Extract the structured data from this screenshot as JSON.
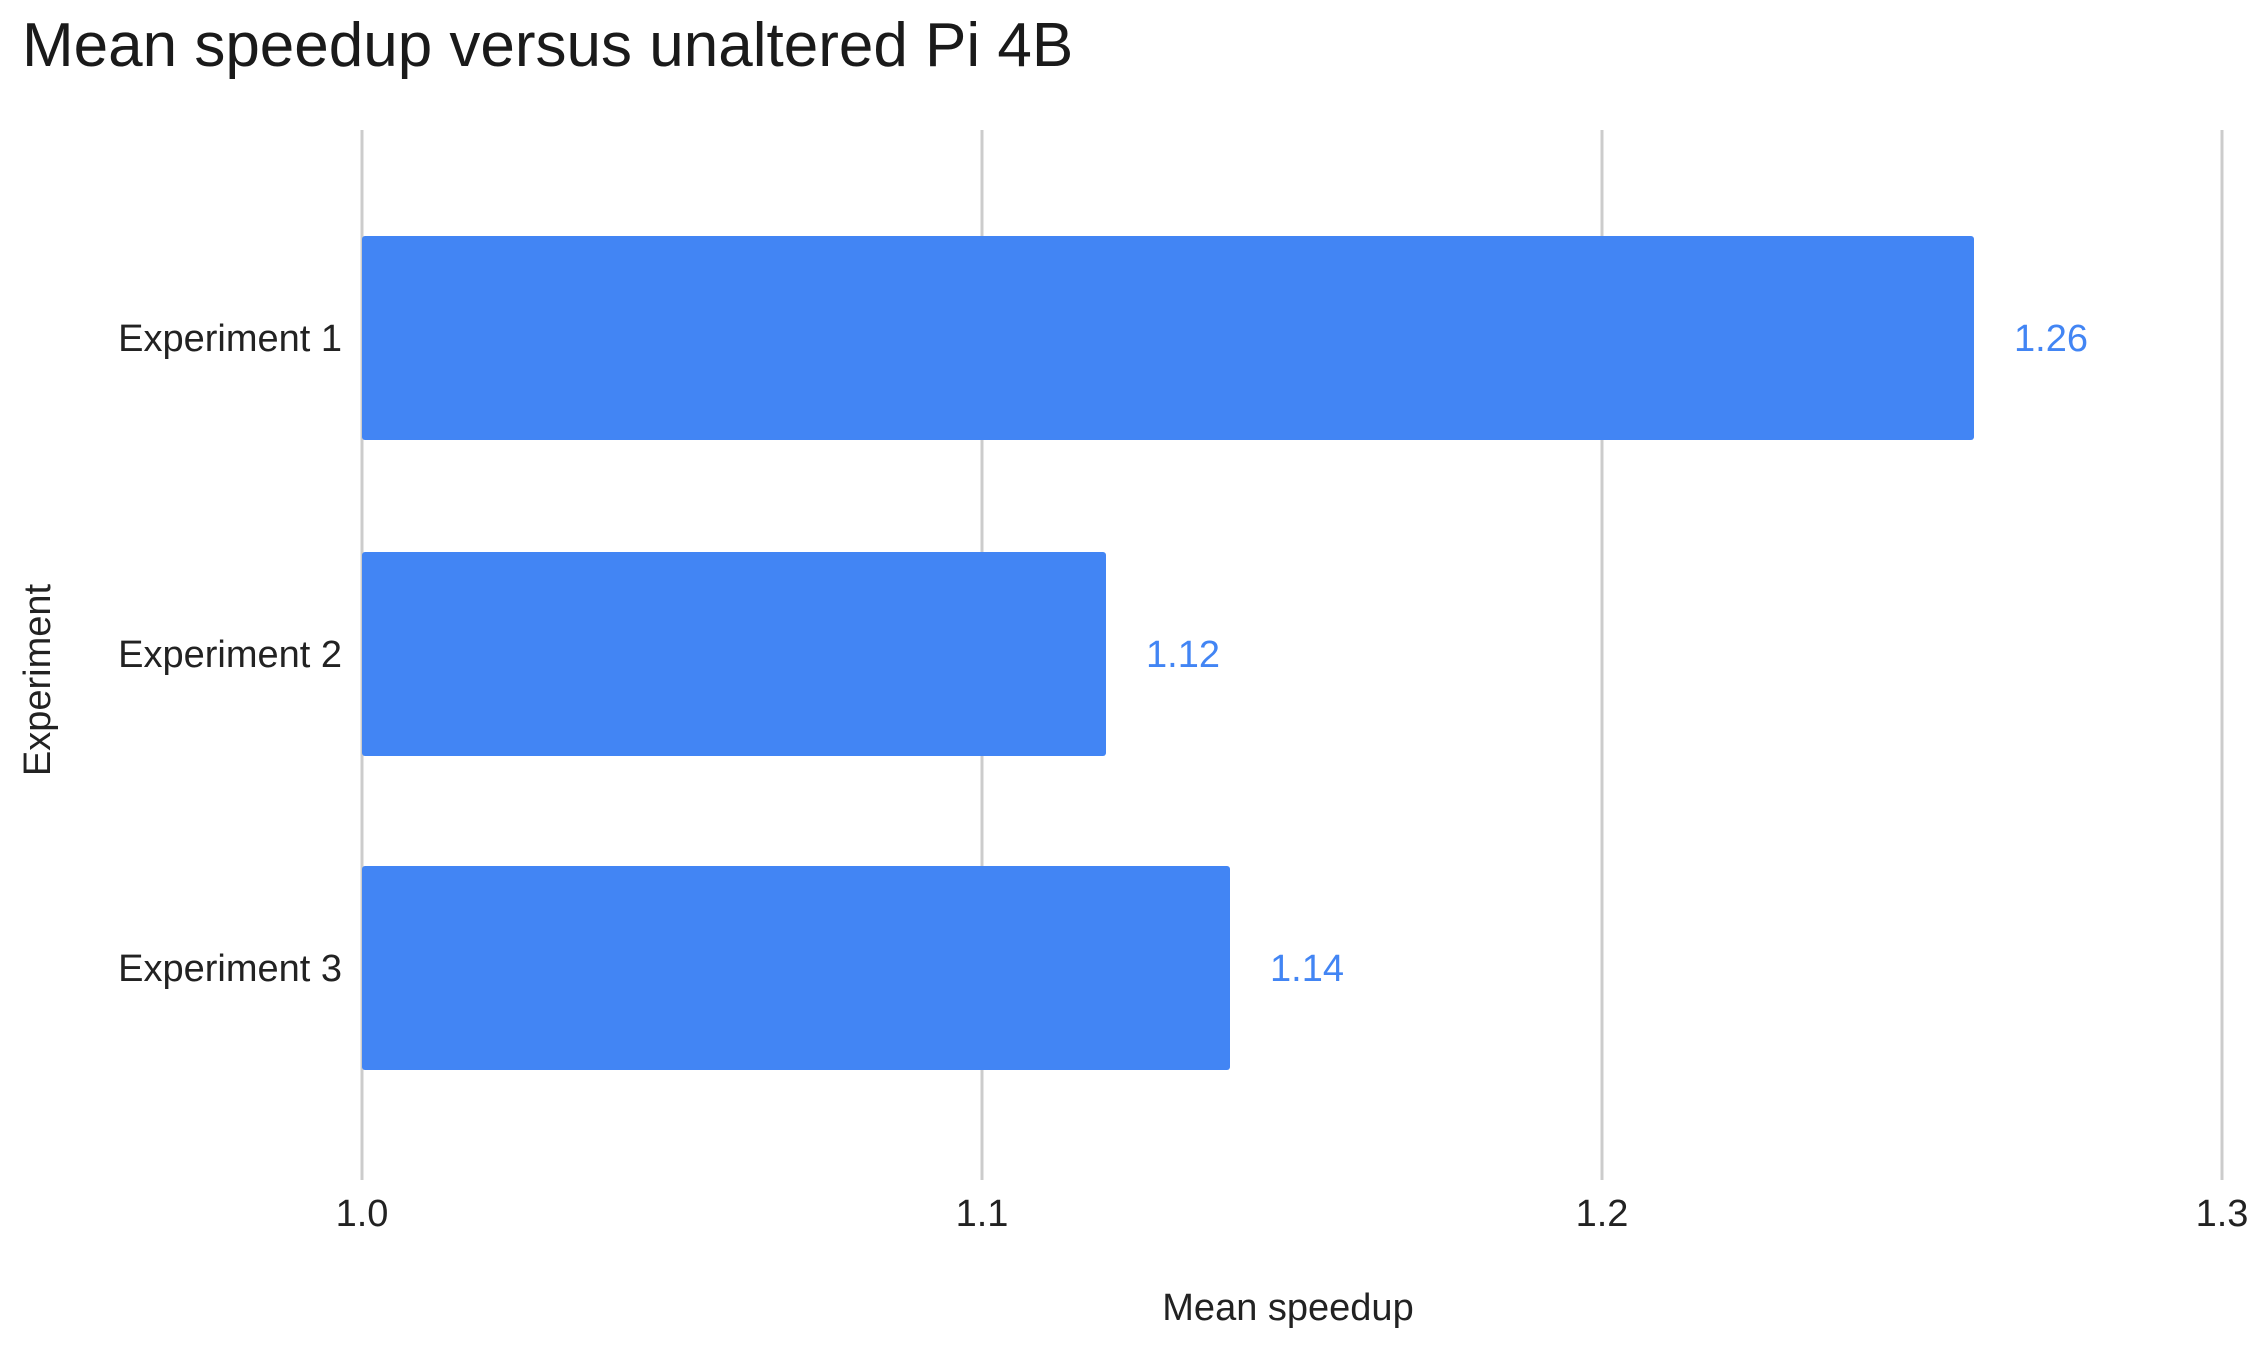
{
  "chart_data": {
    "type": "bar",
    "orientation": "horizontal",
    "title": "Mean speedup versus unaltered Pi 4B",
    "xlabel": "Mean speedup",
    "ylabel": "Experiment",
    "categories": [
      "Experiment 1",
      "Experiment 2",
      "Experiment 3"
    ],
    "values": [
      1.26,
      1.12,
      1.14
    ],
    "data_labels": [
      "1.26",
      "1.12",
      "1.14"
    ],
    "xlim": [
      1.0,
      1.3
    ],
    "xticks": [
      1.0,
      1.1,
      1.2,
      1.3
    ],
    "xtick_labels": [
      "1.0",
      "1.1",
      "1.2",
      "1.3"
    ],
    "grid": "vertical",
    "legend": "none",
    "colors": {
      "bar": "#4285f4",
      "data_label": "#4285f4",
      "grid": "#cccccc",
      "text": "#222222"
    }
  }
}
